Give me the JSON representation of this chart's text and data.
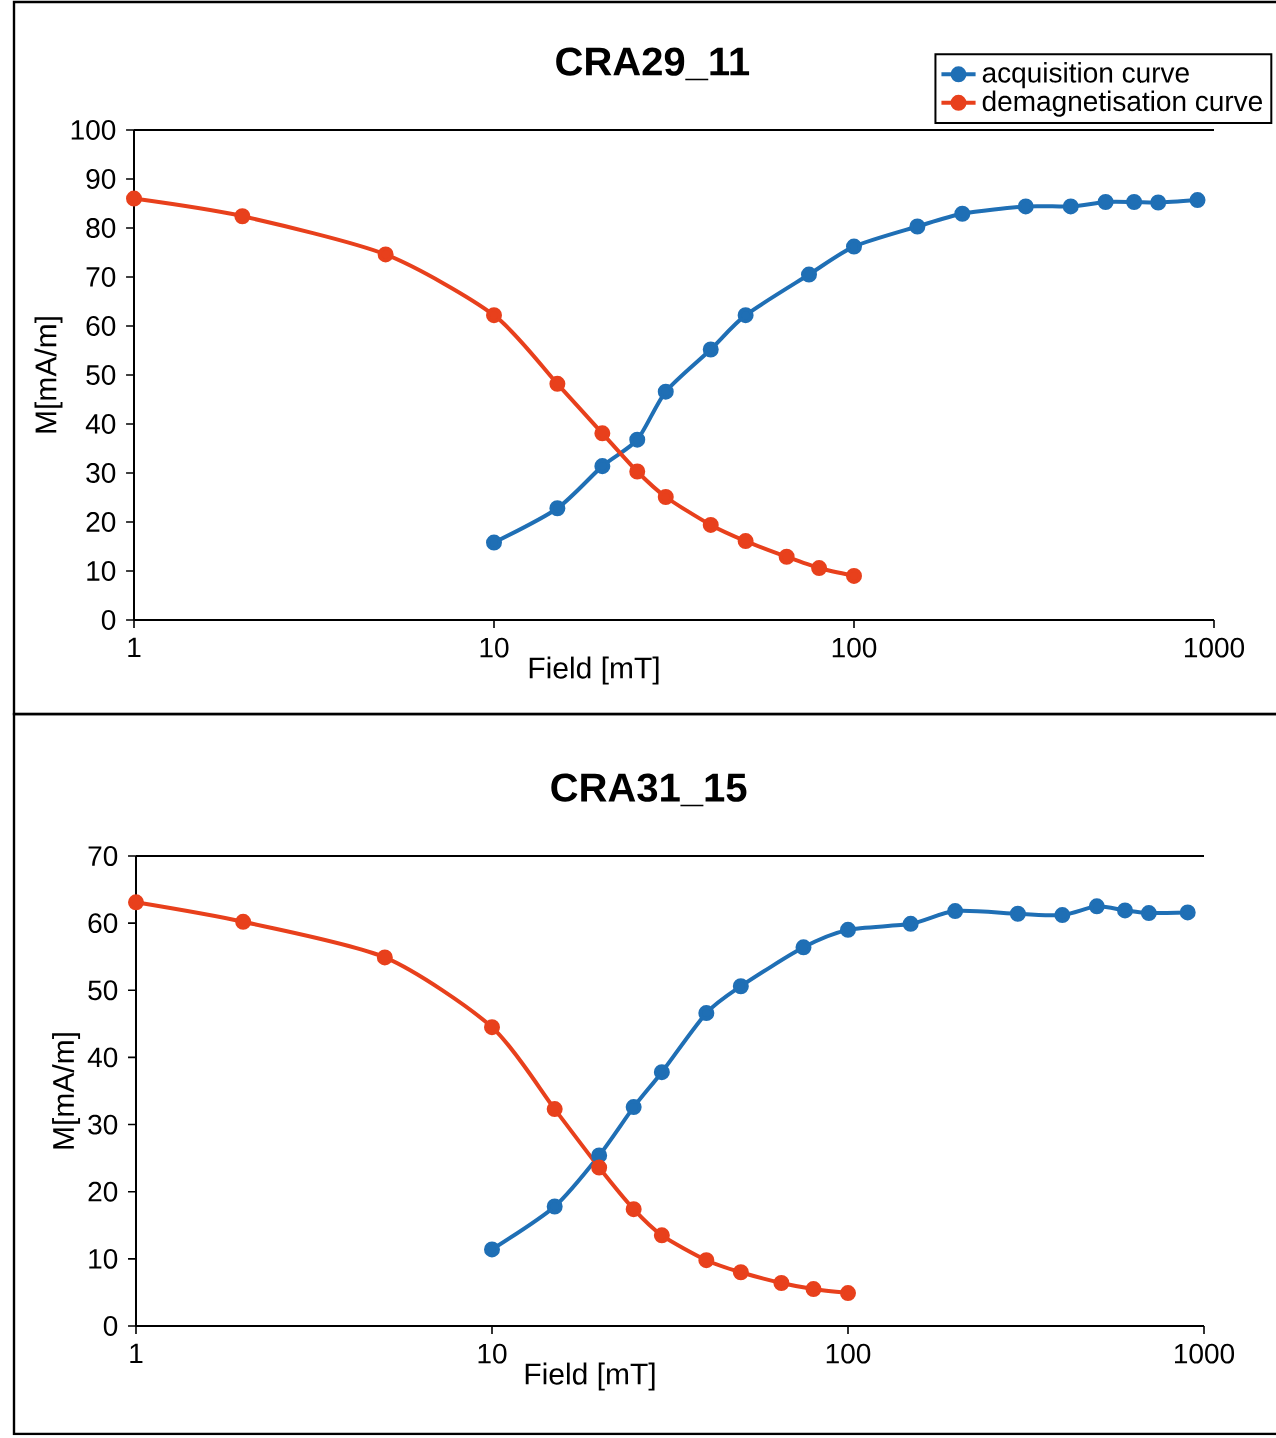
{
  "chart_data": [
    {
      "type": "line",
      "title": "CRA29_11",
      "xlabel": "Field [mT]",
      "ylabel": "M[mA/m]",
      "log": "x",
      "xlim": [
        1,
        1000
      ],
      "xticks": [
        1,
        10,
        100,
        1000
      ],
      "ylim": [
        0,
        100
      ],
      "yticks": [
        0,
        10,
        20,
        30,
        40,
        50,
        60,
        70,
        80,
        90,
        100
      ],
      "marker": "circle",
      "line_style": "solid",
      "legend": "top right",
      "series": [
        {
          "name": "acquisition curve",
          "color": "#1f6fb5",
          "x": [
            10,
            15,
            20,
            25,
            30,
            40,
            50,
            75,
            100,
            150,
            200,
            300,
            400,
            500,
            600,
            700,
            900
          ],
          "values": [
            15.8,
            22.8,
            31.4,
            36.8,
            46.6,
            55.2,
            62.2,
            70.5,
            76.2,
            80.3,
            82.9,
            84.4,
            84.4,
            85.3,
            85.3,
            85.2,
            85.7
          ]
        },
        {
          "name": "demagnetisation curve",
          "color": "#e8401c",
          "x": [
            1,
            2,
            5,
            10,
            15,
            20,
            25,
            30,
            40,
            50,
            65,
            80,
            100
          ],
          "values": [
            86.0,
            82.4,
            74.6,
            62.2,
            48.2,
            38.1,
            30.3,
            25.1,
            19.4,
            16.1,
            12.9,
            10.6,
            9.0
          ]
        }
      ]
    },
    {
      "type": "line",
      "title": "CRA31_15",
      "xlabel": "Field [mT]",
      "ylabel": "M[mA/m]",
      "log": "x",
      "xlim": [
        1,
        1000
      ],
      "xticks": [
        1,
        10,
        100,
        1000
      ],
      "ylim": [
        0,
        70
      ],
      "yticks": [
        0,
        10,
        20,
        30,
        40,
        50,
        60,
        70
      ],
      "marker": "circle",
      "line_style": "solid",
      "series": [
        {
          "color": "#1f6fb5",
          "x": [
            10,
            15,
            20,
            25,
            30,
            40,
            50,
            75,
            100,
            150,
            200,
            300,
            400,
            500,
            600,
            700,
            900
          ],
          "values": [
            11.4,
            17.8,
            25.4,
            32.6,
            37.8,
            46.6,
            50.6,
            56.4,
            59.0,
            59.9,
            61.8,
            61.4,
            61.2,
            62.5,
            61.9,
            61.5,
            61.6
          ]
        },
        {
          "color": "#e8401c",
          "x": [
            1,
            2,
            5,
            10,
            15,
            20,
            25,
            30,
            40,
            50,
            65,
            80,
            100
          ],
          "values": [
            63.1,
            60.2,
            54.9,
            44.5,
            32.3,
            23.6,
            17.4,
            13.5,
            9.8,
            8.0,
            6.4,
            5.5,
            4.9
          ]
        }
      ]
    }
  ]
}
